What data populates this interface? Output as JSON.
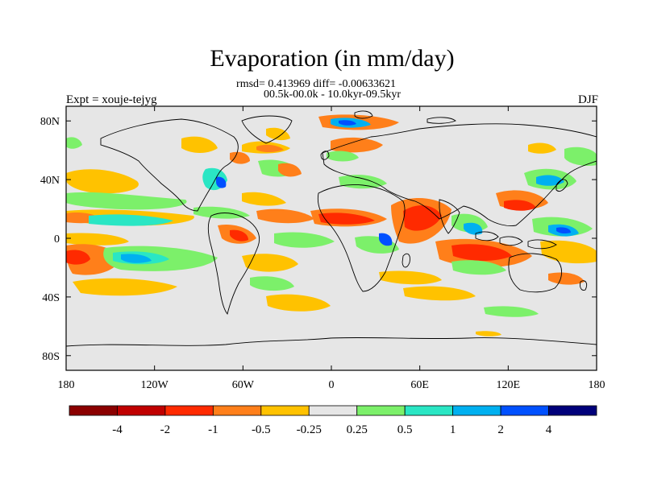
{
  "title": "Evaporation (in mm/day)",
  "stats_line": "rmsd= 0.413969 diff= -0.00633621",
  "period_line": "00.5k-00.0k - 10.0kyr-09.5kyr",
  "left_label": "Expt = xouje-tejyg",
  "right_label": "DJF",
  "x_ticks": [
    "180",
    "120W",
    "60W",
    "0",
    "60E",
    "120E",
    "180"
  ],
  "y_ticks": [
    "80N",
    "40N",
    "0",
    "40S",
    "80S"
  ],
  "colorbar": {
    "colors": [
      "#8b0000",
      "#c00000",
      "#ff2a00",
      "#ff7f1a",
      "#ffc200",
      "#e6e6e6",
      "#7cf06a",
      "#2ae6c4",
      "#00b0f0",
      "#0050ff",
      "#00007a"
    ],
    "labels": [
      "-4",
      "-2",
      "-1",
      "-0.5",
      "-0.25",
      "0.25",
      "0.5",
      "1",
      "2",
      "4"
    ]
  },
  "colors": {
    "ocean_default": "#e6e6e6",
    "coast": "#000000"
  }
}
